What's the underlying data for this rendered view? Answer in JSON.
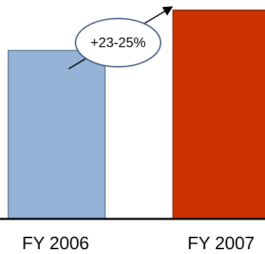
{
  "chart_data": {
    "type": "bar",
    "categories": [
      "FY 2006",
      "FY 2007"
    ],
    "values": [
      100,
      124
    ],
    "ylim": [
      0,
      130
    ],
    "colors": [
      "#95b3d7",
      "#cc3300"
    ],
    "edge_colors": [
      "#4f6f94",
      "#7a1f00"
    ],
    "axis_color": "#000000",
    "grid": false,
    "legend": "none",
    "annotation": {
      "text": "+23-25%",
      "shape": "ellipse",
      "border_color": "#4a5e80",
      "arrow": "up-right"
    }
  }
}
